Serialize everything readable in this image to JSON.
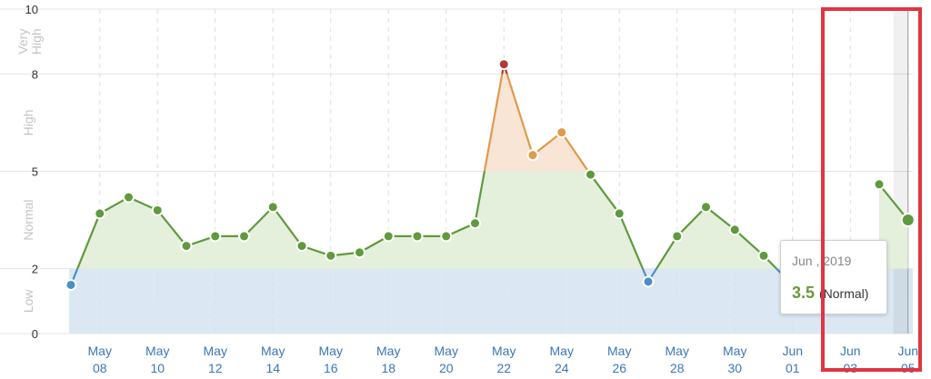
{
  "chart_data": {
    "type": "area",
    "title": "",
    "xlabel": "",
    "ylabel": "",
    "ylim": [
      0,
      10
    ],
    "yticks": [
      "0",
      "2",
      "5",
      "8",
      "10"
    ],
    "zones": [
      {
        "label": "Low",
        "from": 0,
        "to": 2,
        "color": "#dbe8f3"
      },
      {
        "label": "Normal",
        "from": 2,
        "to": 5,
        "color": "#e4efdc"
      },
      {
        "label": "High",
        "from": 5,
        "to": 8,
        "color": "#f8e5d6"
      },
      {
        "label": "Very High",
        "from": 8,
        "to": 10,
        "color": "#f6dcdc"
      }
    ],
    "x_ticks": [
      {
        "month": "May",
        "day": "08"
      },
      {
        "month": "May",
        "day": "10"
      },
      {
        "month": "May",
        "day": "12"
      },
      {
        "month": "May",
        "day": "14"
      },
      {
        "month": "May",
        "day": "16"
      },
      {
        "month": "May",
        "day": "18"
      },
      {
        "month": "May",
        "day": "20"
      },
      {
        "month": "May",
        "day": "22"
      },
      {
        "month": "May",
        "day": "24"
      },
      {
        "month": "May",
        "day": "26"
      },
      {
        "month": "May",
        "day": "28"
      },
      {
        "month": "May",
        "day": "30"
      },
      {
        "month": "Jun",
        "day": "01"
      },
      {
        "month": "Jun",
        "day": "03"
      },
      {
        "month": "Jun",
        "day": "05"
      }
    ],
    "x_start": "2019-05-07",
    "x": [
      "2019-05-07",
      "2019-05-08",
      "2019-05-09",
      "2019-05-10",
      "2019-05-11",
      "2019-05-12",
      "2019-05-13",
      "2019-05-14",
      "2019-05-15",
      "2019-05-16",
      "2019-05-17",
      "2019-05-18",
      "2019-05-19",
      "2019-05-20",
      "2019-05-21",
      "2019-05-22",
      "2019-05-23",
      "2019-05-24",
      "2019-05-25",
      "2019-05-26",
      "2019-05-27",
      "2019-05-28",
      "2019-05-29",
      "2019-05-30",
      "2019-05-31",
      "2019-06-01",
      "2019-06-02",
      "2019-06-03",
      "2019-06-04",
      "2019-06-05"
    ],
    "series": [
      {
        "values": [
          1.5,
          3.7,
          4.2,
          3.8,
          2.7,
          3.0,
          3.0,
          3.9,
          2.7,
          2.4,
          2.5,
          3.0,
          3.0,
          3.0,
          3.4,
          8.3,
          5.5,
          6.2,
          4.9,
          3.7,
          1.6,
          3.0,
          3.9,
          3.2,
          2.4,
          1.5,
          null,
          null,
          4.6,
          3.5
        ],
        "colors": {
          "low": "#4a8fc8",
          "normal": "#5f9a3c",
          "high": "#e09a4a",
          "very_high": "#b23a3a"
        }
      }
    ],
    "grid": true,
    "legend": "none",
    "tooltip": {
      "date": "Jun , 2019",
      "value": "3.5",
      "category": "(Normal)"
    },
    "highlight_region": {
      "from": "2019-06-03",
      "to": "2019-06-05",
      "color": "#e03540"
    }
  }
}
